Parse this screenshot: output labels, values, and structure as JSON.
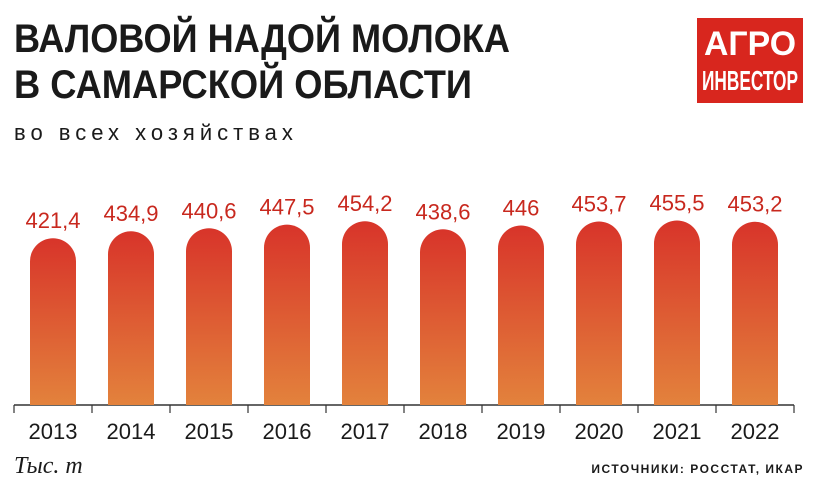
{
  "chart_data": {
    "type": "bar",
    "title_lines": [
      "ВАЛОВОЙ НАДОЙ МОЛОКА",
      "В САМАРСКОЙ ОБЛАСТИ"
    ],
    "subtitle": "во всех хозяйствах",
    "logo": [
      "АГРО",
      "ИНВЕСТОР"
    ],
    "unit": "Тыс. т",
    "source": "ИСТОЧНИКИ: РОССТАТ, ИКАР",
    "categories": [
      "2013",
      "2014",
      "2015",
      "2016",
      "2017",
      "2018",
      "2019",
      "2020",
      "2021",
      "2022"
    ],
    "values": [
      421.4,
      434.9,
      440.6,
      447.5,
      454.2,
      438.6,
      446,
      453.7,
      455.5,
      453.2
    ],
    "value_labels": [
      "421,4",
      "434,9",
      "440,6",
      "447,5",
      "454,2",
      "438,6",
      "446",
      "453,7",
      "455,5",
      "453,2"
    ],
    "color": "#d8342a",
    "ylim": [
      100,
      470
    ]
  }
}
